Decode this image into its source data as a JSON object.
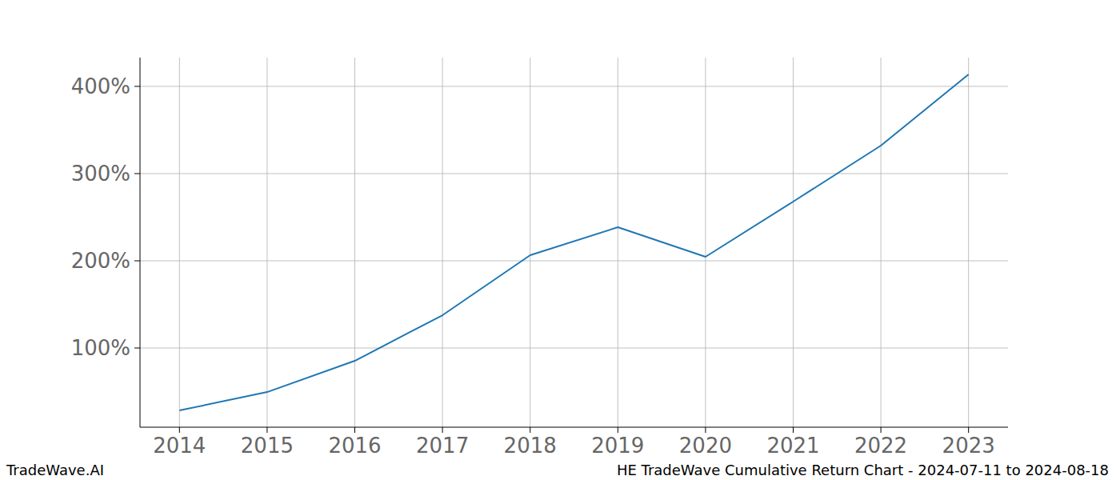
{
  "chart_data": {
    "type": "line",
    "title": "HE TradeWave Cumulative Return Chart - 2024-07-11 to 2024-08-18",
    "annotations": [
      "TradeWave.AI"
    ],
    "x": [
      2014,
      2015,
      2016,
      2017,
      2018,
      2019,
      2020,
      2021,
      2022,
      2023
    ],
    "values": [
      28.4,
      49.5,
      85.3,
      137.6,
      206.4,
      238.5,
      204.6,
      267.9,
      332.1,
      413.8
    ],
    "color": "#1f77b4",
    "xlim": [
      2013.55,
      2023.45
    ],
    "xticks": [
      2014,
      2015,
      2016,
      2017,
      2018,
      2019,
      2020,
      2021,
      2022,
      2023
    ],
    "ylim": [
      9.2,
      433
    ],
    "yticks": [
      {
        "value": 100,
        "label": "100%"
      },
      {
        "value": 200,
        "label": "200%"
      },
      {
        "value": 300,
        "label": "300%"
      },
      {
        "value": 400,
        "label": "400%"
      }
    ],
    "grid": true
  }
}
